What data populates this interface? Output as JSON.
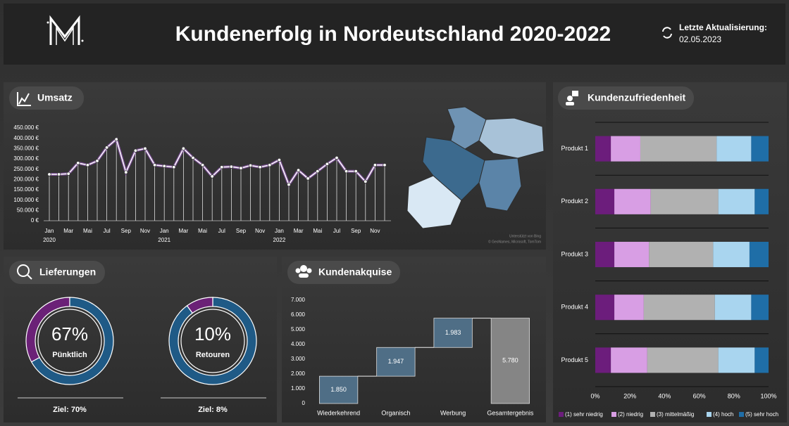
{
  "header": {
    "title": "Kundenerfolg in Nordeutschland 2020-2022",
    "update_label": "Letzte Aktualisierung:",
    "update_date": "02.05.2023"
  },
  "map": {
    "credits": [
      "Unterstützt von Bing",
      "© GeoNames, Microsoft, TomTom"
    ]
  },
  "chart_data": [
    {
      "type": "line",
      "title": "Umsatz",
      "categories": [
        "Jan",
        null,
        "Mar",
        null,
        "Mai",
        null,
        "Jul",
        null,
        "Sep",
        null,
        "Nov",
        null,
        "Jan",
        null,
        "Mar",
        null,
        "Mai",
        null,
        "Jul",
        null,
        "Sep",
        null,
        "Nov",
        null,
        "Jan",
        null,
        "Mar",
        null,
        "Mai",
        null,
        "Jul",
        null,
        "Sep",
        null,
        "Nov",
        null
      ],
      "x_groups": [
        "2020",
        "2021",
        "2022"
      ],
      "values": [
        225000,
        225000,
        228000,
        280000,
        270000,
        290000,
        355000,
        395000,
        235000,
        340000,
        350000,
        270000,
        265000,
        260000,
        350000,
        305000,
        270000,
        215000,
        260000,
        262000,
        255000,
        268000,
        260000,
        270000,
        295000,
        175000,
        245000,
        205000,
        240000,
        275000,
        305000,
        240000,
        240000,
        190000,
        270000,
        270000
      ],
      "color": "#ffffff",
      "glow_color": "#9b5cc0",
      "ylim": [
        0,
        450000
      ],
      "yticks": [
        {
          "value": 0,
          "label": "0 €"
        },
        {
          "value": 50000,
          "label": "50.000 €"
        },
        {
          "value": 100000,
          "label": "100.000 €"
        },
        {
          "value": 150000,
          "label": "150.000 €"
        },
        {
          "value": 200000,
          "label": "200.000 €"
        },
        {
          "value": 250000,
          "label": "250.000 €"
        },
        {
          "value": 300000,
          "label": "300.000 €"
        },
        {
          "value": 350000,
          "label": "350.000 €"
        },
        {
          "value": 400000,
          "label": "400.000 €"
        },
        {
          "value": 450000,
          "label": "450.000 €"
        }
      ]
    },
    {
      "type": "donut",
      "title": "Lieferungen",
      "items": [
        {
          "label": "Pünktlich",
          "values": [
            67
          ],
          "value_labels": [
            "67%"
          ],
          "color": "#1f5a86",
          "rest_color": "#6b2177",
          "target_label": "Ziel: 70%"
        },
        {
          "label": "Retouren",
          "values": [
            10
          ],
          "value_labels": [
            "10%"
          ],
          "color": "#6b2177",
          "rest_color": "#1f5a86",
          "target_label": "Ziel: 8%"
        }
      ]
    },
    {
      "type": "waterfall",
      "title": "Kundenakquise",
      "categories": [
        "Wiederkehrend",
        "Organisch",
        "Werbung",
        "Gesamtergebnis"
      ],
      "values": [
        1850,
        1947,
        1983,
        5780
      ],
      "value_labels": [
        "1.850",
        "1.947",
        "1.983",
        "5.780"
      ],
      "color": "#4f6e86",
      "total_color": "#858585",
      "ylim": [
        0,
        7000
      ],
      "yticks": [
        0,
        {
          "value": 1000,
          "label": "1.000"
        },
        {
          "value": 2000,
          "label": "2.000"
        },
        {
          "value": 3000,
          "label": "3.000"
        },
        {
          "value": 4000,
          "label": "4.000"
        },
        {
          "value": 5000,
          "label": "5.000"
        },
        {
          "value": 6000,
          "label": "6.000"
        },
        {
          "value": 7000,
          "label": "7.000"
        }
      ]
    },
    {
      "type": "stacked_bar_h",
      "title": "Kundenzufriedenheit",
      "categories": [
        "Produkt 1",
        "Produkt 2",
        "Produkt 3",
        "Produkt 4",
        "Produkt 5"
      ],
      "series": [
        {
          "name": "(1) sehr niedrig",
          "color": "#6c1d7c",
          "values": [
            9,
            11,
            11,
            11,
            9
          ]
        },
        {
          "name": "(2) niedrig",
          "color": "#d89ee4",
          "values": [
            17,
            21,
            20,
            17,
            21
          ]
        },
        {
          "name": "(3) mittelmäßig",
          "color": "#b1b1b1",
          "values": [
            44,
            39,
            37,
            41,
            41
          ]
        },
        {
          "name": "(4) hoch",
          "color": "#a9d5ef",
          "values": [
            20,
            21,
            21,
            21,
            21
          ]
        },
        {
          "name": "(5) sehr hoch",
          "color": "#1f6ea7",
          "values": [
            10,
            8,
            11,
            10,
            8
          ]
        }
      ],
      "xlim": [
        0,
        100
      ],
      "xticks": [
        {
          "value": 0,
          "label": "0%"
        },
        {
          "value": 20,
          "label": "20%"
        },
        {
          "value": 40,
          "label": "40%"
        },
        {
          "value": 60,
          "label": "60%"
        },
        {
          "value": 80,
          "label": "80%"
        },
        {
          "value": 100,
          "label": "100%"
        }
      ],
      "legend": "bottom"
    }
  ]
}
